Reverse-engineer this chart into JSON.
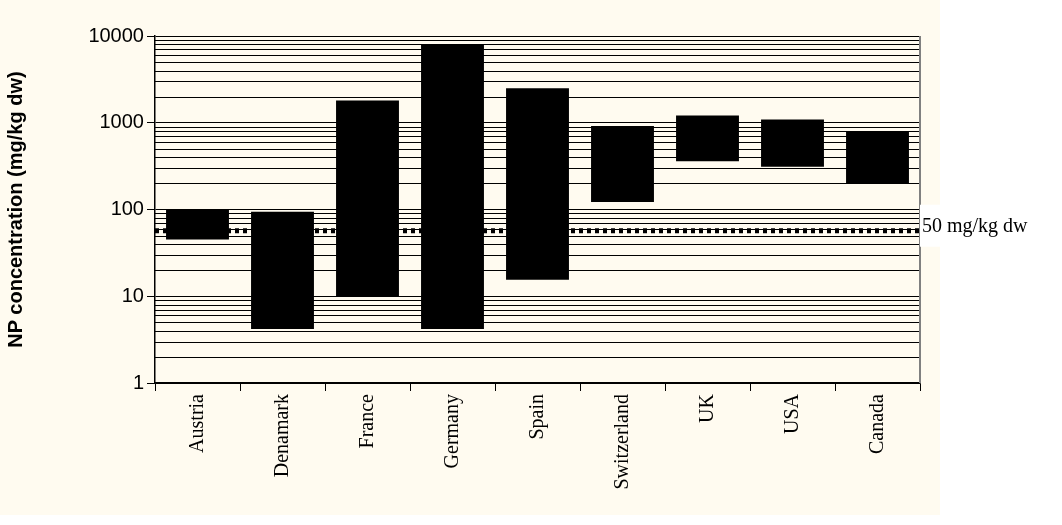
{
  "chart_data": {
    "type": "bar",
    "ylabel": "NP concentration (mg/kg dw)",
    "categories": [
      "Austria",
      "Denamark",
      "France",
      "Germany",
      "Spain",
      "Switzerland",
      "UK",
      "USA",
      "Canada"
    ],
    "base": [
      45,
      4.2,
      10,
      4.2,
      15.5,
      122,
      361,
      310,
      199
    ],
    "values": [
      55,
      89.8,
      1790,
      7995.8,
      2484.5,
      798,
      849,
      780,
      581
    ],
    "color": "#000000",
    "log": "y",
    "ylim": [
      1,
      10000
    ],
    "yticks": [
      1,
      10,
      100,
      1000,
      10000
    ],
    "grid": "y",
    "legend": false,
    "ref_lines": [
      {
        "axis": "y",
        "value": 57,
        "label": "50 mg/kg dw",
        "color": "#000000",
        "line_style": "dotted"
      }
    ]
  }
}
